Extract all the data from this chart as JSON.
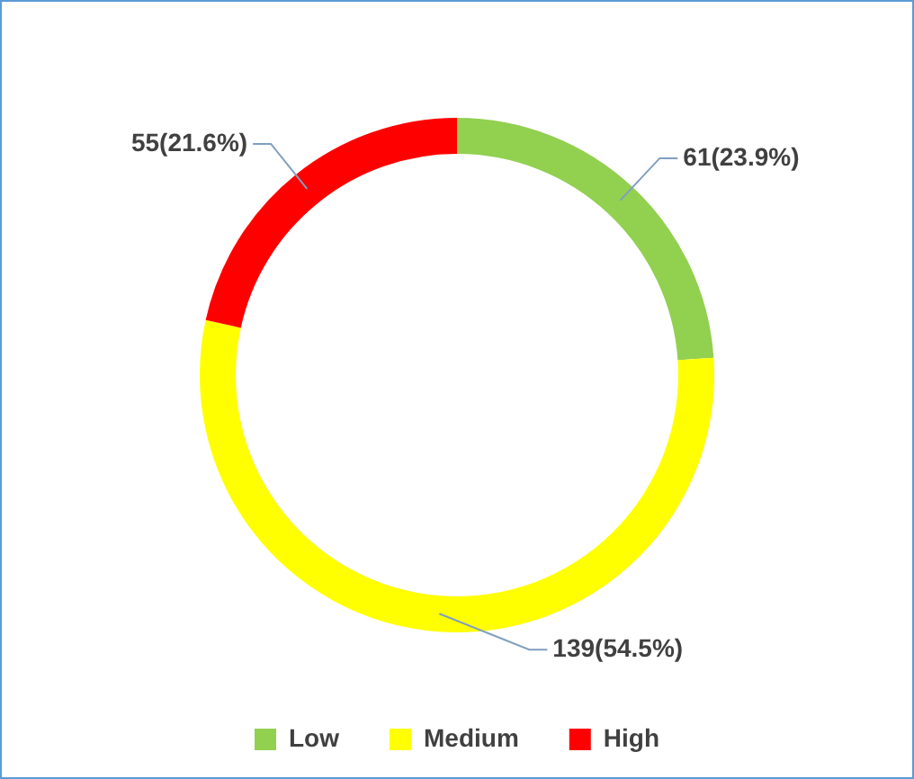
{
  "chart_data": {
    "type": "donut",
    "categories": [
      "Low",
      "Medium",
      "High"
    ],
    "values": [
      61,
      139,
      55
    ],
    "colors": [
      "#92d050",
      "#ffff00",
      "#ff0000"
    ],
    "value_labels": [
      "61(23.9%)",
      "139(54.5%)",
      "55(21.6%)"
    ],
    "legend": "bottom"
  }
}
